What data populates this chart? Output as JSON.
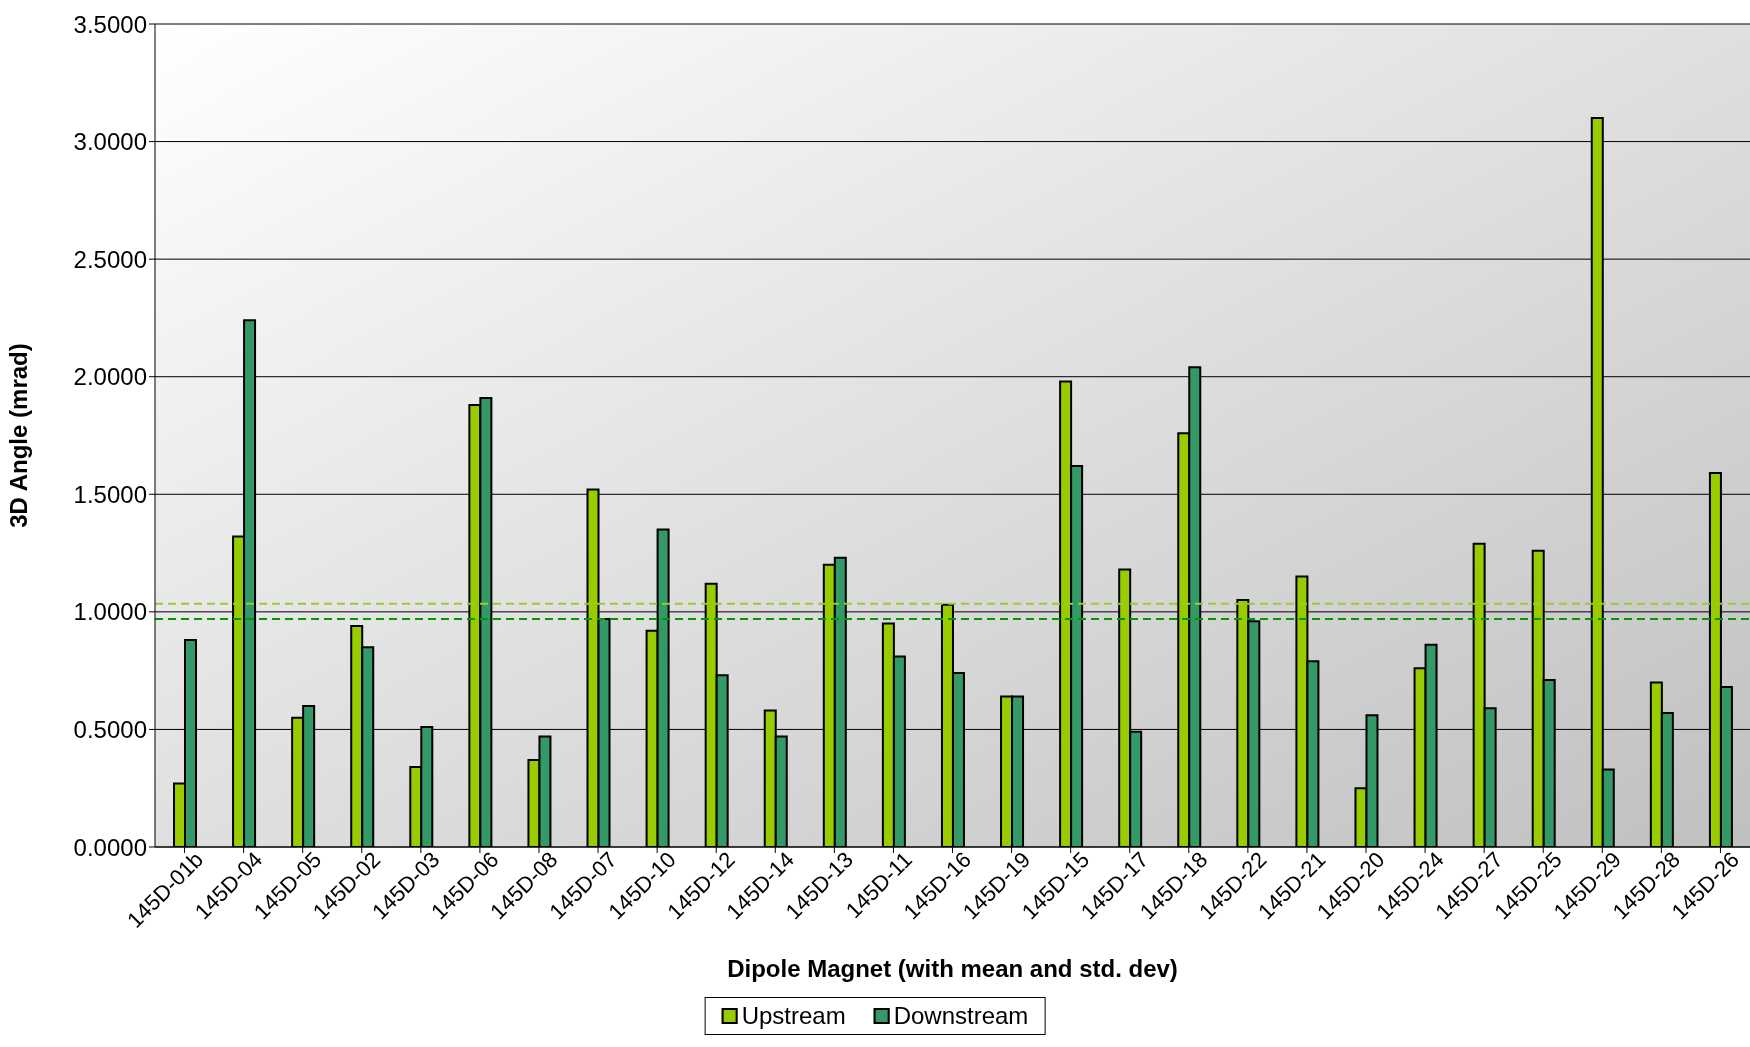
{
  "chart_data": {
    "type": "bar",
    "xlabel": "Dipole Magnet (with mean and std. dev)",
    "ylabel": "3D Angle (mrad)",
    "categories": [
      "145D-01b",
      "145D-04",
      "145D-05",
      "145D-02",
      "145D-03",
      "145D-06",
      "145D-08",
      "145D-07",
      "145D-10",
      "145D-12",
      "145D-14",
      "145D-13",
      "145D-11",
      "145D-16",
      "145D-19",
      "145D-15",
      "145D-17",
      "145D-18",
      "145D-22",
      "145D-21",
      "145D-20",
      "145D-24",
      "145D-27",
      "145D-25",
      "145D-29",
      "145D-28",
      "145D-26"
    ],
    "series": [
      {
        "name": "Upstream",
        "color": "#99cc00",
        "values": [
          0.27,
          1.32,
          0.55,
          0.94,
          0.34,
          1.88,
          0.37,
          1.52,
          0.92,
          1.12,
          0.58,
          1.2,
          0.95,
          1.03,
          0.64,
          1.98,
          1.18,
          1.76,
          1.05,
          1.15,
          0.25,
          0.76,
          1.29,
          1.26,
          3.1,
          0.7,
          1.59
        ]
      },
      {
        "name": "Downstream",
        "color": "#339966",
        "values": [
          0.88,
          2.24,
          0.6,
          0.85,
          0.51,
          1.91,
          0.47,
          0.97,
          1.35,
          0.73,
          0.47,
          1.23,
          0.81,
          0.74,
          0.64,
          1.62,
          0.49,
          2.04,
          0.96,
          0.79,
          0.56,
          0.86,
          0.59,
          0.71,
          0.33,
          0.57,
          0.68
        ]
      }
    ],
    "ylim": [
      0,
      3.5
    ],
    "yticks": [
      {
        "value": 0,
        "label": "0.0000"
      },
      {
        "value": 0.5,
        "label": "0.5000"
      },
      {
        "value": 1,
        "label": "1.0000"
      },
      {
        "value": 1.5,
        "label": "1.5000"
      },
      {
        "value": 2,
        "label": "2.0000"
      },
      {
        "value": 2.5,
        "label": "2.5000"
      },
      {
        "value": 3,
        "label": "3.0000"
      },
      {
        "value": 3.5,
        "label": "3.5000"
      }
    ],
    "ref_lines": [
      {
        "axis": "y",
        "value": 1.035,
        "label": null,
        "color": "#99cc33",
        "line_style": "dashed"
      },
      {
        "axis": "y",
        "value": 0.97,
        "label": null,
        "color": "#009900",
        "line_style": "dashed"
      }
    ],
    "grid": "y",
    "legend": "bottom"
  }
}
